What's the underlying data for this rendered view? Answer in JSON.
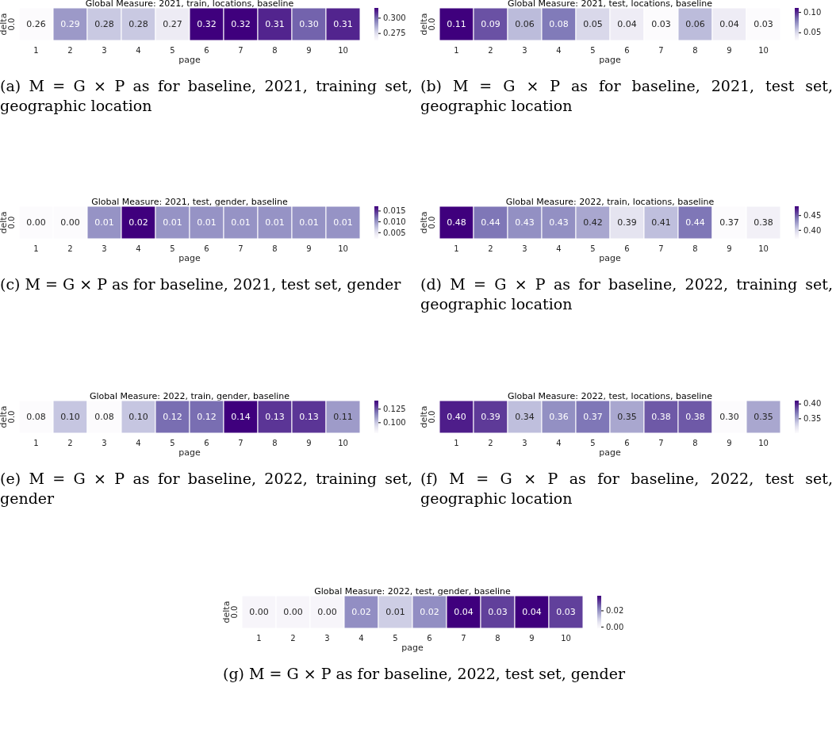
{
  "chart_data": [
    {
      "type": "heatmap",
      "title": "Global Measure: 2021, train, locations, baseline",
      "xlabel": "page",
      "ylabel": "delta",
      "categories": [
        "1",
        "2",
        "3",
        "4",
        "5",
        "6",
        "7",
        "8",
        "9",
        "10"
      ],
      "y_categories": [
        "0.0"
      ],
      "cells": [
        [
          0.26,
          0.29,
          0.28,
          0.28,
          0.27,
          0.32,
          0.32,
          0.31,
          0.3,
          0.31
        ]
      ],
      "cell_labels": [
        [
          "0.26",
          "0.29",
          "0.28",
          "0.28",
          "0.27",
          "0.32",
          "0.32",
          "0.31",
          "0.30",
          "0.31"
        ]
      ],
      "clim": [
        0.263,
        0.316
      ],
      "cticks": [
        {
          "value": 0.275,
          "label": "0.275"
        },
        {
          "value": 0.3,
          "label": "0.300"
        }
      ],
      "annotations": [
        "(a) M = G × P as for baseline, 2021, training set, geographic location"
      ]
    },
    {
      "type": "heatmap",
      "title": "Global Measure: 2021, test, locations, baseline",
      "xlabel": "page",
      "ylabel": "delta",
      "categories": [
        "1",
        "2",
        "3",
        "4",
        "5",
        "6",
        "7",
        "8",
        "9",
        "10"
      ],
      "y_categories": [
        "0.0"
      ],
      "cells": [
        [
          0.11,
          0.09,
          0.06,
          0.08,
          0.05,
          0.04,
          0.03,
          0.06,
          0.04,
          0.03
        ]
      ],
      "cell_labels": [
        [
          "0.11",
          "0.09",
          "0.06",
          "0.08",
          "0.05",
          "0.04",
          "0.03",
          "0.06",
          "0.04",
          "0.03"
        ]
      ],
      "clim": [
        0.03,
        0.11
      ],
      "cticks": [
        {
          "value": 0.05,
          "label": "0.05"
        },
        {
          "value": 0.1,
          "label": "0.10"
        }
      ],
      "annotations": [
        "(b) M = G × P as for baseline, 2021, test set, geographic location"
      ]
    },
    {
      "type": "heatmap",
      "title": "Global Measure: 2021, test, gender, baseline",
      "xlabel": "page",
      "ylabel": "delta",
      "categories": [
        "1",
        "2",
        "3",
        "4",
        "5",
        "6",
        "7",
        "8",
        "9",
        "10"
      ],
      "y_categories": [
        "0.0"
      ],
      "cells": [
        [
          0.0,
          0.0,
          0.01,
          0.02,
          0.01,
          0.01,
          0.01,
          0.01,
          0.01,
          0.01
        ]
      ],
      "cell_labels": [
        [
          "0.00",
          "0.00",
          "0.01",
          "0.02",
          "0.01",
          "0.01",
          "0.01",
          "0.01",
          "0.01",
          "0.01"
        ]
      ],
      "clim": [
        0.002,
        0.017
      ],
      "cticks": [
        {
          "value": 0.005,
          "label": "0.005"
        },
        {
          "value": 0.01,
          "label": "0.010"
        },
        {
          "value": 0.015,
          "label": "0.015"
        }
      ],
      "annotations": [
        "(c) M = G × P as for baseline, 2021, test set, gender"
      ]
    },
    {
      "type": "heatmap",
      "title": "Global Measure: 2022, train, locations, baseline",
      "xlabel": "page",
      "ylabel": "delta",
      "categories": [
        "1",
        "2",
        "3",
        "4",
        "5",
        "6",
        "7",
        "8",
        "9",
        "10"
      ],
      "y_categories": [
        "0.0"
      ],
      "cells": [
        [
          0.48,
          0.44,
          0.43,
          0.43,
          0.42,
          0.39,
          0.41,
          0.44,
          0.37,
          0.38
        ]
      ],
      "cell_labels": [
        [
          "0.48",
          "0.44",
          "0.43",
          "0.43",
          "0.42",
          "0.39",
          "0.41",
          "0.44",
          "0.37",
          "0.38"
        ]
      ],
      "clim": [
        0.37,
        0.48
      ],
      "cticks": [
        {
          "value": 0.4,
          "label": "0.40"
        },
        {
          "value": 0.45,
          "label": "0.45"
        }
      ],
      "annotations": [
        "(d) M = G × P as for baseline, 2022, training set, geographic location"
      ]
    },
    {
      "type": "heatmap",
      "title": "Global Measure: 2022, train, gender, baseline",
      "xlabel": "page",
      "ylabel": "delta",
      "categories": [
        "1",
        "2",
        "3",
        "4",
        "5",
        "6",
        "7",
        "8",
        "9",
        "10"
      ],
      "y_categories": [
        "0.0"
      ],
      "cells": [
        [
          0.08,
          0.1,
          0.08,
          0.1,
          0.12,
          0.12,
          0.14,
          0.13,
          0.13,
          0.11
        ]
      ],
      "cell_labels": [
        [
          "0.08",
          "0.10",
          "0.08",
          "0.10",
          "0.12",
          "0.12",
          "0.14",
          "0.13",
          "0.13",
          "0.11"
        ]
      ],
      "clim": [
        0.08,
        0.14
      ],
      "cticks": [
        {
          "value": 0.1,
          "label": "0.100"
        },
        {
          "value": 0.125,
          "label": "0.125"
        }
      ],
      "annotations": [
        "(e) M = G × P as for baseline, 2022, training set, gender"
      ]
    },
    {
      "type": "heatmap",
      "title": "Global Measure: 2022, test, locations, baseline",
      "xlabel": "page",
      "ylabel": "delta",
      "categories": [
        "1",
        "2",
        "3",
        "4",
        "5",
        "6",
        "7",
        "8",
        "9",
        "10"
      ],
      "y_categories": [
        "0.0"
      ],
      "cells": [
        [
          0.4,
          0.39,
          0.34,
          0.36,
          0.37,
          0.35,
          0.38,
          0.38,
          0.3,
          0.35
        ]
      ],
      "cell_labels": [
        [
          "0.40",
          "0.39",
          "0.34",
          "0.36",
          "0.37",
          "0.35",
          "0.38",
          "0.38",
          "0.30",
          "0.35"
        ]
      ],
      "clim": [
        0.3,
        0.41
      ],
      "cticks": [
        {
          "value": 0.35,
          "label": "0.35"
        },
        {
          "value": 0.4,
          "label": "0.40"
        }
      ],
      "annotations": [
        "(f) M = G × P as for baseline, 2022, test set, geographic location"
      ]
    },
    {
      "type": "heatmap",
      "title": "Global Measure: 2022, test, gender, baseline",
      "xlabel": "page",
      "ylabel": "delta",
      "categories": [
        "1",
        "2",
        "3",
        "4",
        "5",
        "6",
        "7",
        "8",
        "9",
        "10"
      ],
      "y_categories": [
        "0.0"
      ],
      "cells": [
        [
          0.0,
          0.0,
          0.0,
          0.02,
          0.01,
          0.02,
          0.04,
          0.03,
          0.04,
          0.03
        ]
      ],
      "cell_labels": [
        [
          "0.00",
          "0.00",
          "0.00",
          "0.02",
          "0.01",
          "0.02",
          "0.04",
          "0.03",
          "0.04",
          "0.03"
        ]
      ],
      "clim": [
        -0.002,
        0.038
      ],
      "cticks": [
        {
          "value": 0,
          "label": "0.00"
        },
        {
          "value": 0.02,
          "label": "0.02"
        }
      ],
      "annotations": [
        "(g) M = G × P as for baseline, 2022, test set, gender"
      ]
    }
  ]
}
